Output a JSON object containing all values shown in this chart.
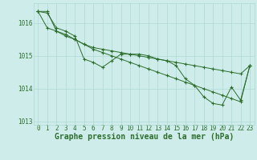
{
  "title": "",
  "xlabel": "Graphe pression niveau de la mer (hPa)",
  "background_color": "#ceecea",
  "grid_color": "#aed8d4",
  "line_color": "#2d6e2d",
  "hours": [
    0,
    1,
    2,
    3,
    4,
    5,
    6,
    7,
    8,
    9,
    10,
    11,
    12,
    13,
    14,
    15,
    16,
    17,
    18,
    19,
    20,
    21,
    22,
    23
  ],
  "line1": [
    1016.35,
    1016.3,
    1015.85,
    1015.75,
    1015.6,
    1014.9,
    1014.8,
    1014.65,
    1014.85,
    1015.05,
    1015.05,
    1015.05,
    1015.0,
    1014.9,
    1014.85,
    1014.7,
    1014.3,
    1014.1,
    1013.75,
    1013.55,
    1013.5,
    1014.05,
    1013.65,
    1014.7
  ],
  "line2": [
    1016.35,
    1015.85,
    1015.75,
    1015.6,
    1015.5,
    1015.35,
    1015.2,
    1015.1,
    1015.0,
    1014.9,
    1014.8,
    1014.7,
    1014.6,
    1014.5,
    1014.4,
    1014.3,
    1014.2,
    1014.1,
    1014.0,
    1013.9,
    1013.8,
    1013.7,
    1013.6,
    1014.7
  ],
  "line3": [
    1016.35,
    1016.35,
    1015.75,
    1015.65,
    1015.5,
    1015.35,
    1015.25,
    1015.2,
    1015.15,
    1015.1,
    1015.05,
    1015.0,
    1014.95,
    1014.9,
    1014.85,
    1014.8,
    1014.75,
    1014.7,
    1014.65,
    1014.6,
    1014.55,
    1014.5,
    1014.45,
    1014.7
  ],
  "ylim": [
    1012.9,
    1016.6
  ],
  "yticks": [
    1013,
    1014,
    1015,
    1016
  ],
  "xlim": [
    -0.5,
    23.5
  ],
  "xticks": [
    0,
    1,
    2,
    3,
    4,
    5,
    6,
    7,
    8,
    9,
    10,
    11,
    12,
    13,
    14,
    15,
    16,
    17,
    18,
    19,
    20,
    21,
    22,
    23
  ],
  "xlabel_fontsize": 7,
  "tick_fontsize": 5.5
}
